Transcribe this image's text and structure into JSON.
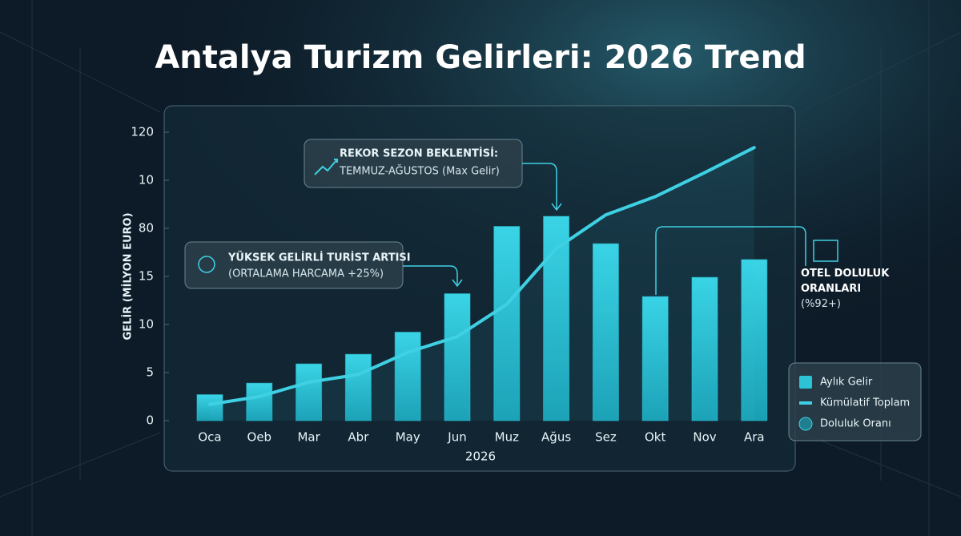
{
  "chart_data": {
    "type": "bar",
    "title": "Antalya Turizm Gelirleri: 2026 Trend",
    "y_label": "GELİR (MİLYON EURO)",
    "x_label": "2026",
    "categories": [
      "Oca",
      "Oeb",
      "Mar",
      "Abr",
      "May",
      "Jun",
      "Muz",
      "Ağus",
      "Sez",
      "Okt",
      "Nov",
      "Ara"
    ],
    "series": [
      {
        "name": "Aylık Gelir",
        "type": "bar",
        "color": "#2cc3d6",
        "values": [
          2.7,
          3.9,
          5.9,
          6.9,
          9.2,
          13.2,
          20.2,
          21.25,
          18.4,
          12.9,
          14.9,
          16.75
        ]
      },
      {
        "name": "Kümülatif Toplam",
        "type": "line",
        "color": "#3fd0e4",
        "values": [
          1.7,
          2.5,
          4,
          4.8,
          7.1,
          8.75,
          12.1,
          17.9,
          21.4,
          23.3,
          25.8,
          28.4
        ]
      }
    ],
    "extra_legend": [
      "Doluluk Oranı"
    ],
    "ylim": [
      0,
      30
    ],
    "yticks": [
      0,
      5,
      10,
      15,
      {
        "value": 20,
        "label": "80"
      },
      {
        "value": 25,
        "label": "10"
      },
      {
        "value": 30,
        "label": "120"
      }
    ],
    "legend": "right",
    "annotations": [
      {
        "title": "REKOR SEZON BEKLENTİSİ:",
        "text": "TEMMUZ-AĞUSTOS (Max Gelir)"
      },
      {
        "title": "YÜKSEK GELİRLİ TURİST ARTISI",
        "text": "(ORTALAMA HARCAMA +25%)"
      },
      {
        "title": "OTEL DOLULUK ORANLARI",
        "text": "(%92+)"
      }
    ]
  }
}
